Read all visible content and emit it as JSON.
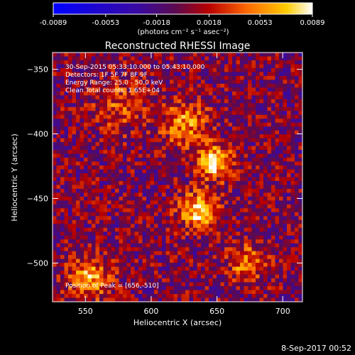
{
  "chart_data": {
    "type": "heatmap",
    "title": "Reconstructed RHESSI Image",
    "xlabel": "Heliocentric X (arcsec)",
    "ylabel": "Heliocentric Y (arcsec)",
    "xlim": [
      525,
      715
    ],
    "ylim": [
      -530,
      -337
    ],
    "x_ticks": [
      550,
      600,
      650,
      700
    ],
    "y_ticks": [
      -350,
      -400,
      -450,
      -500
    ],
    "colorbar": {
      "ticks": [
        "-0.0089",
        "-0.0053",
        "-0.0018",
        "0.0018",
        "0.0053",
        "0.0089"
      ],
      "range": [
        -0.0089,
        0.0089
      ],
      "unit_label": "(photons cm⁻² s⁻¹ asec⁻²)"
    },
    "annotations": [
      "30-Sep-2015 05:33:10.000 to 05:43:10.000",
      "Detectors: 1F 5F 7F 8F 9F",
      "Energy Range: 25.0 - 50.0 keV",
      "Clean    Total counts: 1.65E+04"
    ],
    "peak_label": "Position of Peak = [656,-510]",
    "peak": [
      656,
      -510
    ],
    "sources": [
      {
        "x": 648,
        "y": -422,
        "amplitude": 0.0085,
        "sigma": 9
      },
      {
        "x": 636,
        "y": -460,
        "amplitude": 0.0075,
        "sigma": 10
      },
      {
        "x": 626,
        "y": -392,
        "amplitude": 0.0055,
        "sigma": 12
      },
      {
        "x": 553,
        "y": -512,
        "amplitude": 0.006,
        "sigma": 11
      },
      {
        "x": 672,
        "y": -500,
        "amplitude": 0.005,
        "sigma": 10
      },
      {
        "x": 575,
        "y": -378,
        "amplitude": 0.0035,
        "sigma": 14
      }
    ],
    "noise_level": 0.003
  },
  "footer_timestamp": "8-Sep-2017 00:52"
}
